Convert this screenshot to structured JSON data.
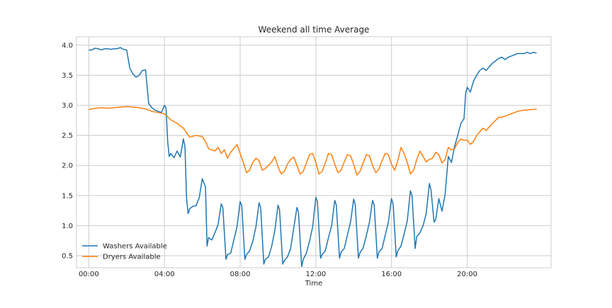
{
  "chart_data": {
    "type": "line",
    "title": "Weekend all time Average",
    "xlabel": "Time",
    "ylabel": "",
    "grid": true,
    "legend_position": "lower-left",
    "xlim": [
      "23:21",
      "24:26"
    ],
    "ylim": [
      0.3,
      4.14
    ],
    "x_ticks": [
      "00:00",
      "04:00",
      "08:00",
      "12:00",
      "16:00",
      "20:00"
    ],
    "y_ticks": [
      "0.5",
      "1.0",
      "1.5",
      "2.0",
      "2.5",
      "3.0",
      "3.5",
      "4.0"
    ],
    "series": [
      {
        "name": "Washers Available",
        "color": "#1f77b4",
        "points": [
          [
            "00:00",
            3.92
          ],
          [
            "00:10",
            3.92
          ],
          [
            "00:20",
            3.95
          ],
          [
            "00:30",
            3.94
          ],
          [
            "00:40",
            3.92
          ],
          [
            "00:50",
            3.94
          ],
          [
            "01:00",
            3.94
          ],
          [
            "01:10",
            3.93
          ],
          [
            "01:20",
            3.94
          ],
          [
            "01:30",
            3.94
          ],
          [
            "01:40",
            3.96
          ],
          [
            "01:50",
            3.93
          ],
          [
            "02:00",
            3.92
          ],
          [
            "02:10",
            3.62
          ],
          [
            "02:20",
            3.52
          ],
          [
            "02:30",
            3.47
          ],
          [
            "02:40",
            3.5
          ],
          [
            "02:50",
            3.58
          ],
          [
            "03:00",
            3.59
          ],
          [
            "03:10",
            3.03
          ],
          [
            "03:20",
            2.96
          ],
          [
            "03:30",
            2.92
          ],
          [
            "03:40",
            2.9
          ],
          [
            "03:50",
            2.88
          ],
          [
            "04:00",
            3.0
          ],
          [
            "04:05",
            2.96
          ],
          [
            "04:10",
            2.4
          ],
          [
            "04:15",
            2.15
          ],
          [
            "04:20",
            2.2
          ],
          [
            "04:30",
            2.13
          ],
          [
            "04:40",
            2.24
          ],
          [
            "04:50",
            2.14
          ],
          [
            "05:00",
            2.44
          ],
          [
            "05:05",
            2.32
          ],
          [
            "05:10",
            1.45
          ],
          [
            "05:15",
            1.2
          ],
          [
            "05:20",
            1.28
          ],
          [
            "05:30",
            1.32
          ],
          [
            "05:40",
            1.33
          ],
          [
            "05:50",
            1.46
          ],
          [
            "06:00",
            1.78
          ],
          [
            "06:10",
            1.64
          ],
          [
            "06:15",
            0.66
          ],
          [
            "06:20",
            0.8
          ],
          [
            "06:30",
            0.76
          ],
          [
            "06:40",
            0.88
          ],
          [
            "06:50",
            1.02
          ],
          [
            "07:00",
            1.36
          ],
          [
            "07:05",
            1.3
          ],
          [
            "07:15",
            0.44
          ],
          [
            "07:20",
            0.52
          ],
          [
            "07:30",
            0.54
          ],
          [
            "07:40",
            0.76
          ],
          [
            "07:50",
            0.98
          ],
          [
            "08:00",
            1.4
          ],
          [
            "08:05",
            1.33
          ],
          [
            "08:15",
            0.44
          ],
          [
            "08:20",
            0.52
          ],
          [
            "08:30",
            0.58
          ],
          [
            "08:40",
            0.74
          ],
          [
            "08:50",
            0.98
          ],
          [
            "09:00",
            1.38
          ],
          [
            "09:05",
            1.3
          ],
          [
            "09:15",
            0.36
          ],
          [
            "09:20",
            0.44
          ],
          [
            "09:30",
            0.48
          ],
          [
            "09:40",
            0.66
          ],
          [
            "09:50",
            0.92
          ],
          [
            "10:00",
            1.34
          ],
          [
            "10:05",
            1.26
          ],
          [
            "10:15",
            0.36
          ],
          [
            "10:20",
            0.42
          ],
          [
            "10:30",
            0.48
          ],
          [
            "10:40",
            0.62
          ],
          [
            "10:50",
            0.96
          ],
          [
            "11:00",
            1.3
          ],
          [
            "11:05",
            1.22
          ],
          [
            "11:15",
            0.32
          ],
          [
            "11:20",
            0.44
          ],
          [
            "11:30",
            0.54
          ],
          [
            "11:40",
            0.74
          ],
          [
            "11:50",
            0.98
          ],
          [
            "12:00",
            1.47
          ],
          [
            "12:05",
            1.4
          ],
          [
            "12:15",
            0.46
          ],
          [
            "12:20",
            0.52
          ],
          [
            "12:30",
            0.58
          ],
          [
            "12:40",
            0.8
          ],
          [
            "12:50",
            1.0
          ],
          [
            "13:00",
            1.42
          ],
          [
            "13:05",
            1.34
          ],
          [
            "13:15",
            0.46
          ],
          [
            "13:20",
            0.56
          ],
          [
            "13:30",
            0.62
          ],
          [
            "13:40",
            0.84
          ],
          [
            "13:50",
            1.06
          ],
          [
            "14:00",
            1.44
          ],
          [
            "14:05",
            1.35
          ],
          [
            "14:15",
            0.46
          ],
          [
            "14:20",
            0.55
          ],
          [
            "14:30",
            0.63
          ],
          [
            "14:40",
            0.83
          ],
          [
            "14:50",
            1.06
          ],
          [
            "15:00",
            1.42
          ],
          [
            "15:05",
            1.34
          ],
          [
            "15:15",
            0.46
          ],
          [
            "15:20",
            0.56
          ],
          [
            "15:30",
            0.62
          ],
          [
            "15:40",
            0.84
          ],
          [
            "15:50",
            1.06
          ],
          [
            "16:00",
            1.45
          ],
          [
            "16:05",
            1.36
          ],
          [
            "16:15",
            0.48
          ],
          [
            "16:20",
            0.58
          ],
          [
            "16:30",
            0.66
          ],
          [
            "16:40",
            0.86
          ],
          [
            "16:50",
            1.08
          ],
          [
            "17:00",
            1.58
          ],
          [
            "17:05",
            1.5
          ],
          [
            "17:15",
            0.62
          ],
          [
            "17:20",
            0.82
          ],
          [
            "17:30",
            0.88
          ],
          [
            "17:40",
            1.0
          ],
          [
            "17:50",
            1.2
          ],
          [
            "18:00",
            1.7
          ],
          [
            "18:05",
            1.6
          ],
          [
            "18:15",
            1.06
          ],
          [
            "18:20",
            1.1
          ],
          [
            "18:30",
            1.45
          ],
          [
            "18:40",
            1.24
          ],
          [
            "18:50",
            1.52
          ],
          [
            "19:00",
            2.15
          ],
          [
            "19:05",
            2.1
          ],
          [
            "19:10",
            2.05
          ],
          [
            "19:20",
            2.32
          ],
          [
            "19:30",
            2.5
          ],
          [
            "19:40",
            2.7
          ],
          [
            "19:50",
            2.78
          ],
          [
            "19:55",
            3.2
          ],
          [
            "20:00",
            3.3
          ],
          [
            "20:10",
            3.22
          ],
          [
            "20:20",
            3.4
          ],
          [
            "20:30",
            3.5
          ],
          [
            "20:40",
            3.58
          ],
          [
            "20:50",
            3.62
          ],
          [
            "21:00",
            3.58
          ],
          [
            "21:10",
            3.64
          ],
          [
            "21:20",
            3.7
          ],
          [
            "21:30",
            3.74
          ],
          [
            "21:40",
            3.78
          ],
          [
            "21:50",
            3.8
          ],
          [
            "22:00",
            3.76
          ],
          [
            "22:10",
            3.8
          ],
          [
            "22:20",
            3.82
          ],
          [
            "22:30",
            3.84
          ],
          [
            "22:40",
            3.86
          ],
          [
            "22:50",
            3.86
          ],
          [
            "23:00",
            3.86
          ],
          [
            "23:10",
            3.88
          ],
          [
            "23:20",
            3.86
          ],
          [
            "23:30",
            3.88
          ],
          [
            "23:40",
            3.87
          ]
        ]
      },
      {
        "name": "Dryers Available",
        "color": "#ff7f0e",
        "points": [
          [
            "00:00",
            2.93
          ],
          [
            "00:20",
            2.95
          ],
          [
            "00:40",
            2.96
          ],
          [
            "01:00",
            2.95
          ],
          [
            "01:20",
            2.96
          ],
          [
            "01:40",
            2.97
          ],
          [
            "02:00",
            2.98
          ],
          [
            "02:20",
            2.97
          ],
          [
            "02:40",
            2.96
          ],
          [
            "03:00",
            2.94
          ],
          [
            "03:20",
            2.9
          ],
          [
            "03:40",
            2.88
          ],
          [
            "04:00",
            2.86
          ],
          [
            "04:20",
            2.76
          ],
          [
            "04:40",
            2.7
          ],
          [
            "05:00",
            2.62
          ],
          [
            "05:20",
            2.47
          ],
          [
            "05:40",
            2.5
          ],
          [
            "06:00",
            2.48
          ],
          [
            "06:10",
            2.4
          ],
          [
            "06:20",
            2.28
          ],
          [
            "06:40",
            2.24
          ],
          [
            "06:50",
            2.3
          ],
          [
            "07:00",
            2.2
          ],
          [
            "07:10",
            2.26
          ],
          [
            "07:20",
            2.12
          ],
          [
            "07:30",
            2.22
          ],
          [
            "07:40",
            2.28
          ],
          [
            "07:50",
            2.35
          ],
          [
            "08:00",
            2.2
          ],
          [
            "08:10",
            2.05
          ],
          [
            "08:20",
            1.88
          ],
          [
            "08:30",
            1.92
          ],
          [
            "08:40",
            2.05
          ],
          [
            "08:50",
            2.12
          ],
          [
            "09:00",
            2.08
          ],
          [
            "09:10",
            1.92
          ],
          [
            "09:20",
            1.95
          ],
          [
            "09:30",
            2.0
          ],
          [
            "09:40",
            2.06
          ],
          [
            "09:50",
            2.15
          ],
          [
            "10:00",
            1.98
          ],
          [
            "10:10",
            1.86
          ],
          [
            "10:20",
            1.9
          ],
          [
            "10:30",
            2.02
          ],
          [
            "10:40",
            2.1
          ],
          [
            "10:50",
            2.14
          ],
          [
            "11:00",
            2.0
          ],
          [
            "11:10",
            1.86
          ],
          [
            "11:20",
            1.9
          ],
          [
            "11:30",
            2.04
          ],
          [
            "11:40",
            2.18
          ],
          [
            "11:50",
            2.2
          ],
          [
            "12:00",
            2.05
          ],
          [
            "12:10",
            1.86
          ],
          [
            "12:20",
            1.9
          ],
          [
            "12:30",
            2.04
          ],
          [
            "12:40",
            2.2
          ],
          [
            "12:50",
            2.18
          ],
          [
            "13:00",
            2.02
          ],
          [
            "13:10",
            1.88
          ],
          [
            "13:20",
            1.92
          ],
          [
            "13:30",
            2.06
          ],
          [
            "13:40",
            2.18
          ],
          [
            "13:50",
            2.16
          ],
          [
            "14:00",
            2.02
          ],
          [
            "14:10",
            1.84
          ],
          [
            "14:20",
            1.9
          ],
          [
            "14:30",
            2.04
          ],
          [
            "14:40",
            2.18
          ],
          [
            "14:50",
            2.16
          ],
          [
            "15:00",
            2.0
          ],
          [
            "15:10",
            1.88
          ],
          [
            "15:20",
            1.94
          ],
          [
            "15:30",
            2.08
          ],
          [
            "15:40",
            2.2
          ],
          [
            "15:50",
            2.18
          ],
          [
            "16:00",
            2.02
          ],
          [
            "16:10",
            1.92
          ],
          [
            "16:20",
            2.08
          ],
          [
            "16:30",
            2.3
          ],
          [
            "16:40",
            2.2
          ],
          [
            "16:50",
            2.05
          ],
          [
            "17:00",
            1.86
          ],
          [
            "17:10",
            1.92
          ],
          [
            "17:20",
            2.1
          ],
          [
            "17:30",
            2.24
          ],
          [
            "17:40",
            2.15
          ],
          [
            "17:50",
            2.06
          ],
          [
            "18:00",
            2.1
          ],
          [
            "18:10",
            2.12
          ],
          [
            "18:20",
            2.22
          ],
          [
            "18:30",
            2.18
          ],
          [
            "18:40",
            2.04
          ],
          [
            "18:50",
            2.1
          ],
          [
            "19:00",
            2.3
          ],
          [
            "19:10",
            2.26
          ],
          [
            "19:20",
            2.28
          ],
          [
            "19:30",
            2.38
          ],
          [
            "19:40",
            2.44
          ],
          [
            "19:50",
            2.42
          ],
          [
            "20:00",
            2.42
          ],
          [
            "20:10",
            2.35
          ],
          [
            "20:20",
            2.4
          ],
          [
            "20:30",
            2.5
          ],
          [
            "20:40",
            2.56
          ],
          [
            "20:50",
            2.62
          ],
          [
            "21:00",
            2.58
          ],
          [
            "21:10",
            2.64
          ],
          [
            "21:20",
            2.7
          ],
          [
            "21:30",
            2.75
          ],
          [
            "21:40",
            2.8
          ],
          [
            "21:50",
            2.8
          ],
          [
            "22:00",
            2.82
          ],
          [
            "22:10",
            2.84
          ],
          [
            "22:20",
            2.86
          ],
          [
            "22:30",
            2.88
          ],
          [
            "22:40",
            2.9
          ],
          [
            "22:50",
            2.91
          ],
          [
            "23:00",
            2.92
          ],
          [
            "23:10",
            2.92
          ],
          [
            "23:20",
            2.93
          ],
          [
            "23:30",
            2.93
          ],
          [
            "23:40",
            2.94
          ]
        ]
      }
    ]
  }
}
